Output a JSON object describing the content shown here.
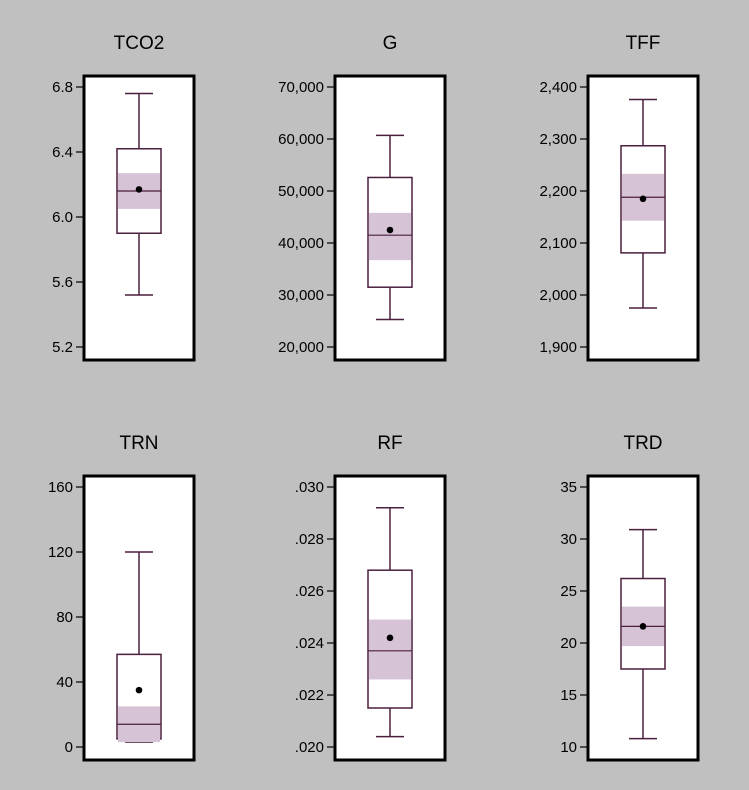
{
  "colors": {
    "background": "#c0c0c0",
    "frame": "#000000",
    "box_line": "#4a1f3f",
    "ci_band": "#d6c3d6",
    "mean_dot": "#000000"
  },
  "chart_data": [
    {
      "type": "boxplot",
      "title": "TCO2",
      "ylim": [
        5.2,
        6.8
      ],
      "ticks": [
        5.2,
        5.6,
        6.0,
        6.4,
        6.8
      ],
      "tick_labels": [
        "5.2",
        "5.6",
        "6.0",
        "6.4",
        "6.8"
      ],
      "whisker_low": 5.52,
      "q1": 5.9,
      "median": 6.16,
      "q3": 6.42,
      "whisker_high": 6.76,
      "ci_low": 6.05,
      "ci_high": 6.27,
      "mean": 6.17
    },
    {
      "type": "boxplot",
      "title": "G",
      "ylim": [
        20000,
        70000
      ],
      "ticks": [
        20000,
        30000,
        40000,
        50000,
        60000,
        70000
      ],
      "tick_labels": [
        "20,000",
        "30,000",
        "40,000",
        "50,000",
        "60,000",
        "70,000"
      ],
      "whisker_low": 25300,
      "q1": 31500,
      "median": 41500,
      "q3": 52600,
      "whisker_high": 60700,
      "ci_low": 36700,
      "ci_high": 45800,
      "mean": 42500
    },
    {
      "type": "boxplot",
      "title": "TFF",
      "ylim": [
        1900,
        2400
      ],
      "ticks": [
        1900,
        2000,
        2100,
        2200,
        2300,
        2400
      ],
      "tick_labels": [
        "1,900",
        "2,000",
        "2,100",
        "2,200",
        "2,300",
        "2,400"
      ],
      "whisker_low": 1975,
      "q1": 2081,
      "median": 2188,
      "q3": 2287,
      "whisker_high": 2376,
      "ci_low": 2143,
      "ci_high": 2233,
      "mean": 2185
    },
    {
      "type": "boxplot",
      "title": "TRN",
      "ylim": [
        0,
        160
      ],
      "ticks": [
        0,
        40,
        80,
        120,
        160
      ],
      "tick_labels": [
        "0",
        "40",
        "80",
        "120",
        "160"
      ],
      "whisker_low": 3,
      "q1": 5,
      "median": 14,
      "q3": 57,
      "whisker_high": 120,
      "ci_low": 3,
      "ci_high": 25,
      "mean": 35
    },
    {
      "type": "boxplot",
      "title": "RF",
      "ylim": [
        0.02,
        0.03
      ],
      "ticks": [
        0.02,
        0.022,
        0.024,
        0.026,
        0.028,
        0.03
      ],
      "tick_labels": [
        ".020",
        ".022",
        ".024",
        ".026",
        ".028",
        ".030"
      ],
      "whisker_low": 0.0204,
      "q1": 0.0215,
      "median": 0.0237,
      "q3": 0.0268,
      "whisker_high": 0.0292,
      "ci_low": 0.0226,
      "ci_high": 0.0249,
      "mean": 0.0242
    },
    {
      "type": "boxplot",
      "title": "TRD",
      "ylim": [
        10,
        35
      ],
      "ticks": [
        10,
        15,
        20,
        25,
        30,
        35
      ],
      "tick_labels": [
        "10",
        "15",
        "20",
        "25",
        "30",
        "35"
      ],
      "whisker_low": 10.8,
      "q1": 17.5,
      "median": 21.6,
      "q3": 26.2,
      "whisker_high": 30.9,
      "ci_low": 19.7,
      "ci_high": 23.5,
      "mean": 21.6
    }
  ]
}
